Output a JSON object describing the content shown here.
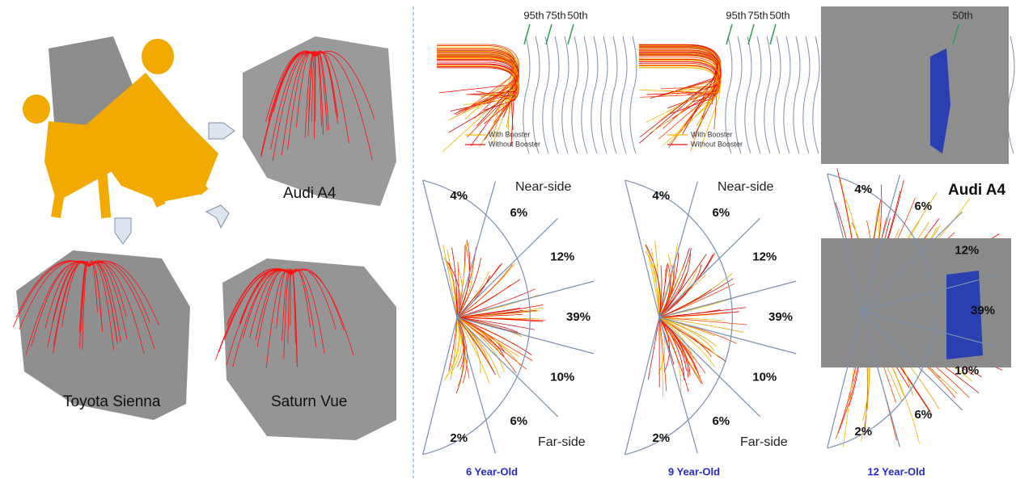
{
  "vehicles": [
    {
      "label": "Audi A4"
    },
    {
      "label": "Toyota Sienna"
    },
    {
      "label": "Saturn Vue"
    }
  ],
  "trajectory_panels": [
    {
      "percentile_labels": [
        "95th",
        "75th",
        "50th"
      ],
      "legend": [
        "With Booster",
        "Without Booster"
      ]
    },
    {
      "percentile_labels": [
        "95th",
        "75th",
        "50th"
      ],
      "legend": [
        "With Booster",
        "Without Booster"
      ]
    },
    {
      "percentile_labels": [
        "50th"
      ]
    }
  ],
  "zone_panels": [
    {
      "zones": [
        "4%",
        "6%",
        "12%",
        "39%",
        "10%",
        "6%",
        "2%"
      ],
      "near_side": "Near-side",
      "far_side": "Far-side",
      "caption": "6 Year-Old"
    },
    {
      "zones": [
        "4%",
        "6%",
        "12%",
        "39%",
        "10%",
        "6%",
        "2%"
      ],
      "near_side": "Near-side",
      "far_side": "Far-side",
      "caption": "9 Year-Old"
    },
    {
      "zones": [
        "4%",
        "6%",
        "12%",
        "39%",
        "10%",
        "6%",
        "2%"
      ],
      "vehicle": "Audi A4",
      "caption": "12 Year-Old"
    }
  ]
}
